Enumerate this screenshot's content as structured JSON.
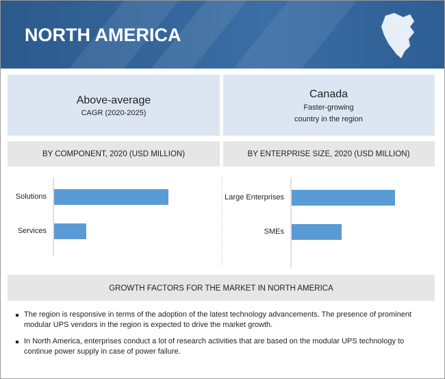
{
  "header": {
    "title": "NORTH AMERICA"
  },
  "highlights": [
    {
      "title": "Above-average",
      "lines": [
        "CAGR (2020-2025)"
      ]
    },
    {
      "title": "Canada",
      "lines": [
        "Faster-growing",
        "country in the region"
      ]
    }
  ],
  "chart_data": [
    {
      "type": "bar",
      "orientation": "horizontal",
      "title": "BY COMPONENT, 2020 (USD MILLION)",
      "categories": [
        "Solutions",
        "Services"
      ],
      "values": [
        167,
        47
      ],
      "color": "#5b9bd5"
    },
    {
      "type": "bar",
      "orientation": "horizontal",
      "title": "BY ENTERPRISE SIZE, 2020 (USD MILLION)",
      "categories": [
        "Large Enterprises",
        "SMEs"
      ],
      "values": [
        151,
        73
      ],
      "color": "#5b9bd5"
    }
  ],
  "growth_factors": {
    "title": "GROWTH FACTORS FOR THE MARKET IN NORTH AMERICA",
    "items": [
      "The region is responsive in terms of the adoption of the latest technology advancements. The presence of prominent modular UPS vendors in the region is expected to drive the market growth.",
      "In North America, enterprises conduct a lot of research activities that are based on the modular UPS technology to continue power supply in case of power failure."
    ]
  }
}
